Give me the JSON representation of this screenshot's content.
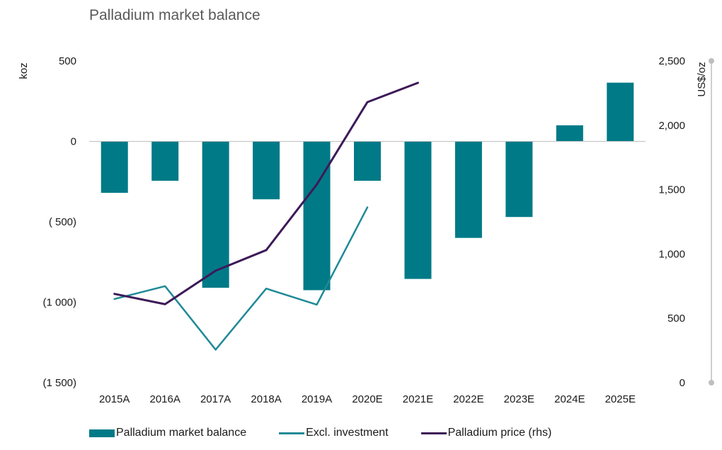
{
  "chart_data": {
    "type": "bar",
    "title": "Palladium market balance",
    "ylabel": "koz",
    "y2label": "US$/oz",
    "ylim": [
      -1500,
      500
    ],
    "y2lim": [
      0,
      2500
    ],
    "yticks": [
      500,
      0,
      -500,
      -1000,
      -1500
    ],
    "yticklabels": [
      "500",
      "0",
      "( 500)",
      "(1 000)",
      "(1 500)"
    ],
    "y2ticks": [
      2500,
      2000,
      1500,
      1000,
      500,
      0
    ],
    "y2ticklabels": [
      "2,500",
      "2,000",
      "1,500",
      "1,000",
      "500",
      "0"
    ],
    "categories": [
      "2015A",
      "2016A",
      "2017A",
      "2018A",
      "2019A",
      "2020E",
      "2021E",
      "2022E",
      "2023E",
      "2024E",
      "2025E"
    ],
    "legend_position": "bottom",
    "grid": false,
    "series": [
      {
        "name": "Palladium market balance",
        "kind": "bar",
        "axis": "left",
        "color": "#007a87",
        "values": [
          -320,
          -245,
          -910,
          -360,
          -925,
          -245,
          -855,
          -600,
          -470,
          100,
          365
        ]
      },
      {
        "name": "Excl. investment",
        "kind": "line",
        "axis": "left",
        "color": "#1f8a96",
        "values": [
          -980,
          -900,
          -1295,
          -915,
          -1015,
          -410,
          null,
          null,
          null,
          null,
          null
        ]
      },
      {
        "name": "Palladium price (rhs)",
        "kind": "line",
        "axis": "right",
        "color": "#3d1a57",
        "values": [
          690,
          610,
          870,
          1030,
          1540,
          2180,
          2330,
          null,
          null,
          null,
          null
        ]
      }
    ]
  }
}
